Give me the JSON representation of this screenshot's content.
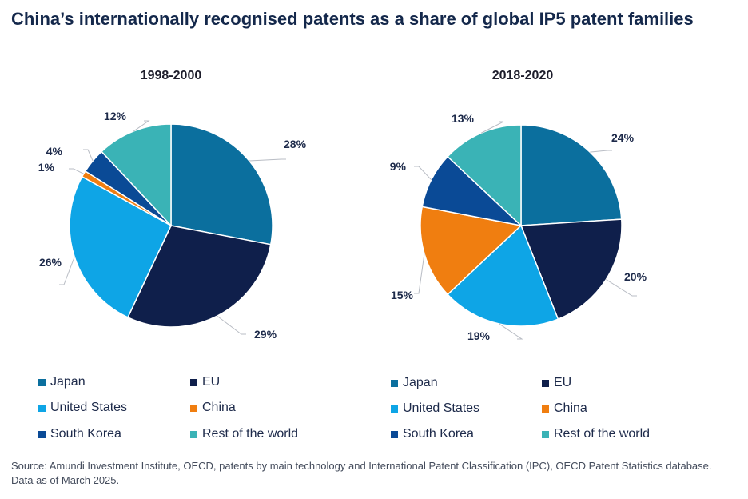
{
  "title": "China’s internationally recognised patents as a share of global IP5 patent families",
  "source": "Source: Amundi Investment Institute, OECD, patents by main technology and International Patent Classification (IPC), OECD Patent Statistics database. Data as of March 2025.",
  "colors": {
    "Japan": "#0b6f9e",
    "EU": "#0f1f4b",
    "United States": "#0ea5e6",
    "China": "#f07e10",
    "South Korea": "#0a4a96",
    "Rest of the world": "#3ab3b6"
  },
  "legend_labels": [
    "Japan",
    "EU",
    "United States",
    "China",
    "South Korea",
    "Rest of the world"
  ],
  "chart_data": [
    {
      "type": "pie",
      "title": "1998-2000",
      "categories": [
        "Japan",
        "EU",
        "United States",
        "China",
        "South Korea",
        "Rest of the world"
      ],
      "values": [
        28,
        29,
        26,
        1,
        4,
        12
      ],
      "labels": [
        "28%",
        "29%",
        "26%",
        "1%",
        "4%",
        "12%"
      ]
    },
    {
      "type": "pie",
      "title": "2018-2020",
      "categories": [
        "Japan",
        "EU",
        "United States",
        "China",
        "South Korea",
        "Rest of the world"
      ],
      "values": [
        24,
        20,
        19,
        15,
        9,
        13
      ],
      "labels": [
        "24%",
        "20%",
        "19%",
        "15%",
        "9%",
        "13%"
      ]
    }
  ]
}
